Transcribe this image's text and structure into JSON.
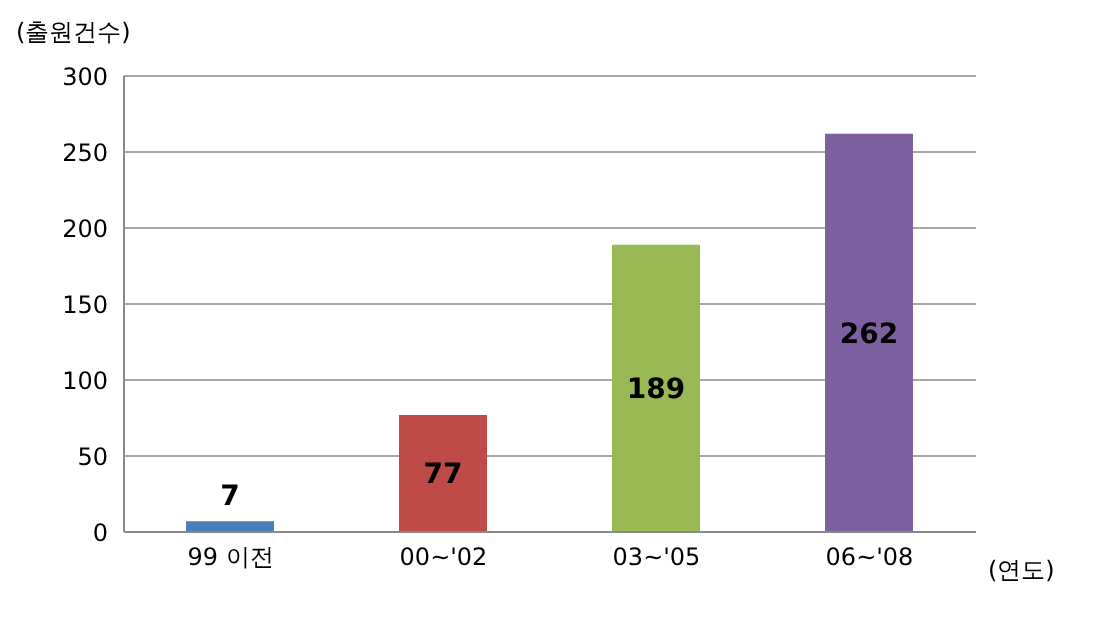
{
  "chart_data": {
    "type": "bar",
    "ylabel": "(출원건수)",
    "xlabel": "(연도)",
    "categories": [
      "99 이전",
      "00~'02",
      "03~'05",
      "06~'08"
    ],
    "values": [
      7,
      77,
      189,
      262
    ],
    "colors": [
      "#4a7ebb",
      "#be4b48",
      "#98b954",
      "#7d60a0"
    ],
    "ylim": [
      0,
      300
    ],
    "yticks": [
      0,
      50,
      100,
      150,
      200,
      250,
      300
    ],
    "grid": "y",
    "data_labels": true
  }
}
